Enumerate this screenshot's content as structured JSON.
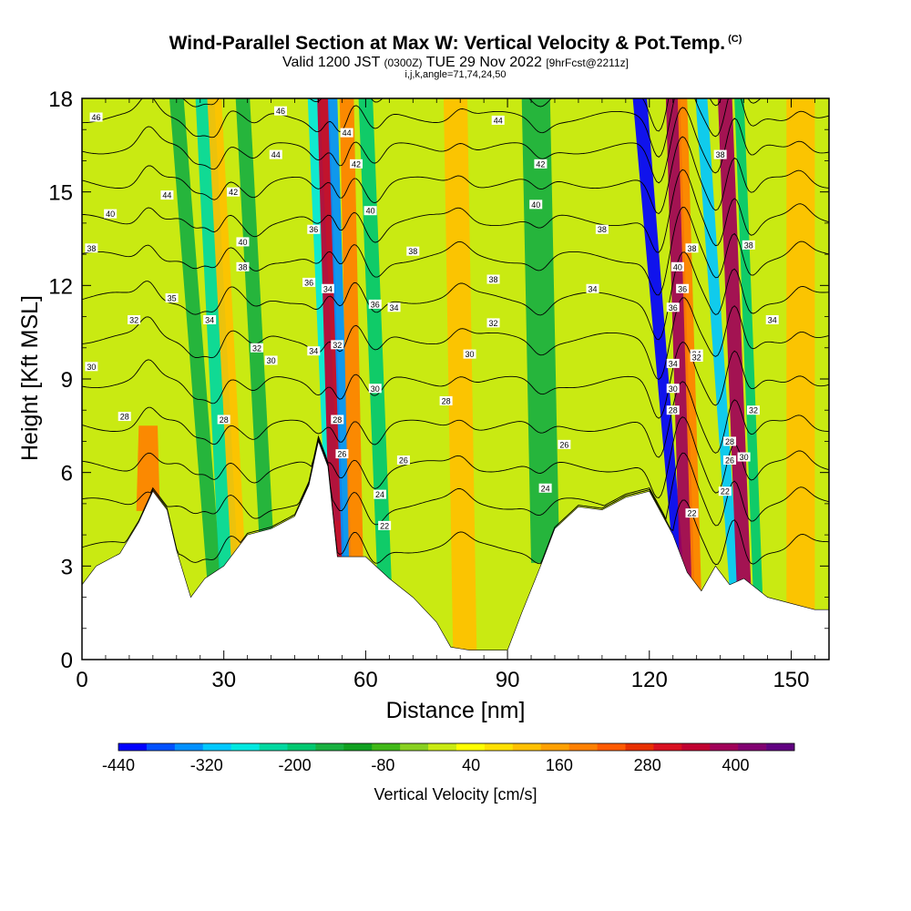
{
  "title": "Wind-Parallel Section at Max W: Vertical Velocity & Pot.Temp.",
  "title_mark": "(C)",
  "subtitle_pre": "Valid 1200 JST ",
  "subtitle_utc": "(0300Z)",
  "subtitle_mid": " TUE 29 Nov 2022 ",
  "subtitle_fcst": "[9hrFcst@2211z]",
  "index_line": "i,j,k,angle=71,74,24,50",
  "colorbar_label": "Vertical Velocity [cm/s]",
  "chart_data": {
    "type": "heatmap",
    "xlabel": "Distance [nm]",
    "ylabel": "Height [Kft MSL]",
    "xlim": [
      0,
      158
    ],
    "ylim": [
      0,
      18
    ],
    "x_ticks": [
      0,
      30,
      60,
      90,
      120,
      150
    ],
    "x_tick_labels": [
      "0",
      "30",
      "60",
      "90",
      "120",
      "150"
    ],
    "y_ticks": [
      0,
      3,
      6,
      9,
      12,
      15,
      18
    ],
    "y_tick_labels": [
      "0",
      "3",
      "6",
      "9",
      "12",
      "15",
      "18"
    ],
    "background_color": "#c9ea12",
    "terrain": {
      "x": [
        0,
        3,
        8,
        12,
        15,
        18,
        20,
        23,
        26,
        30,
        35,
        40,
        45,
        48,
        50,
        52,
        54,
        57,
        60,
        65,
        70,
        75,
        78,
        82,
        86,
        90,
        93,
        97,
        100,
        105,
        110,
        115,
        120,
        125,
        128,
        131,
        134,
        137,
        140,
        145,
        150,
        155,
        158
      ],
      "height_kft": [
        2.4,
        3.0,
        3.4,
        4.4,
        5.4,
        4.8,
        3.5,
        2.0,
        2.6,
        3.0,
        4.0,
        4.2,
        4.6,
        5.6,
        7.0,
        6.2,
        3.3,
        3.3,
        3.3,
        2.6,
        2.0,
        1.2,
        0.4,
        0.3,
        0.3,
        0.3,
        1.5,
        3.0,
        4.2,
        4.9,
        4.8,
        5.2,
        5.4,
        4.0,
        2.8,
        2.2,
        3.0,
        2.4,
        2.6,
        2.0,
        1.8,
        1.6,
        1.6
      ]
    },
    "shading_features": [
      {
        "x_base": 14,
        "x_top": 14,
        "w_base": 5,
        "w_top": 4,
        "value": 200,
        "y_top": 7.5
      },
      {
        "x_base": 28,
        "x_top": 20,
        "w_base": 3,
        "w_top": 3,
        "value": -150
      },
      {
        "x_base": 31,
        "x_top": 26,
        "w_base": 4,
        "w_top": 4,
        "value": -230
      },
      {
        "x_base": 33,
        "x_top": 28,
        "w_base": 3,
        "w_top": 3,
        "value": 140
      },
      {
        "x_base": 39,
        "x_top": 34,
        "w_base": 3,
        "w_top": 3,
        "value": -130
      },
      {
        "x_base": 53,
        "x_top": 49,
        "w_base": 3,
        "w_top": 2.5,
        "value": -260
      },
      {
        "x_base": 54,
        "x_top": 51,
        "w_base": 3,
        "w_top": 2.5,
        "value": 360
      },
      {
        "x_base": 56,
        "x_top": 53,
        "w_base": 2,
        "w_top": 2,
        "value": -360
      },
      {
        "x_base": 58,
        "x_top": 56,
        "w_base": 3,
        "w_top": 3,
        "value": 200
      },
      {
        "x_base": 64,
        "x_top": 60,
        "w_base": 3,
        "w_top": 3,
        "value": -200
      },
      {
        "x_base": 81,
        "x_top": 79,
        "w_base": 5,
        "w_top": 5,
        "value": 120
      },
      {
        "x_base": 98,
        "x_top": 96,
        "w_base": 6,
        "w_top": 6,
        "value": -140
      },
      {
        "x_base": 126,
        "x_top": 118,
        "w_base": 2,
        "w_top": 3,
        "value": -440
      },
      {
        "x_base": 128,
        "x_top": 125,
        "w_base": 3,
        "w_top": 3,
        "value": 400
      },
      {
        "x_base": 130,
        "x_top": 127,
        "w_base": 2,
        "w_top": 2,
        "value": 220
      },
      {
        "x_base": 138,
        "x_top": 131,
        "w_base": 2,
        "w_top": 2.5,
        "value": -300
      },
      {
        "x_base": 140,
        "x_top": 136,
        "w_base": 3,
        "w_top": 3,
        "value": 400
      },
      {
        "x_base": 143,
        "x_top": 139,
        "w_base": 2,
        "w_top": 2,
        "value": -200
      },
      {
        "x_base": 152,
        "x_top": 152,
        "w_base": 6,
        "w_top": 6,
        "value": 130
      }
    ],
    "isentropes": {
      "levels": [
        22,
        24,
        26,
        28,
        30,
        32,
        34,
        36,
        38,
        40,
        42,
        44,
        46
      ],
      "base_height_kft": [
        3.6,
        5.0,
        6.2,
        7.5,
        8.9,
        10.3,
        11.6,
        12.9,
        14.1,
        15.3,
        16.4,
        17.4,
        18.3
      ]
    },
    "isentrope_labels": [
      {
        "text": "46",
        "x": 3,
        "y": 17.4
      },
      {
        "text": "46",
        "x": 42,
        "y": 17.6
      },
      {
        "text": "44",
        "x": 18,
        "y": 14.9
      },
      {
        "text": "44",
        "x": 41,
        "y": 16.2
      },
      {
        "text": "44",
        "x": 56,
        "y": 16.9
      },
      {
        "text": "44",
        "x": 88,
        "y": 17.3
      },
      {
        "text": "42",
        "x": 32,
        "y": 15.0
      },
      {
        "text": "42",
        "x": 58,
        "y": 15.9
      },
      {
        "text": "42",
        "x": 97,
        "y": 15.9
      },
      {
        "text": "40",
        "x": 6,
        "y": 14.3
      },
      {
        "text": "40",
        "x": 34,
        "y": 13.4
      },
      {
        "text": "40",
        "x": 61,
        "y": 14.4
      },
      {
        "text": "40",
        "x": 96,
        "y": 14.6
      },
      {
        "text": "40",
        "x": 126,
        "y": 12.6
      },
      {
        "text": "38",
        "x": 2,
        "y": 13.2
      },
      {
        "text": "38",
        "x": 34,
        "y": 12.6
      },
      {
        "text": "38",
        "x": 70,
        "y": 13.1
      },
      {
        "text": "38",
        "x": 87,
        "y": 12.2
      },
      {
        "text": "38",
        "x": 110,
        "y": 13.8
      },
      {
        "text": "38",
        "x": 129,
        "y": 13.2
      },
      {
        "text": "38",
        "x": 135,
        "y": 16.2
      },
      {
        "text": "38",
        "x": 141,
        "y": 13.3
      },
      {
        "text": "36",
        "x": 49,
        "y": 13.8
      },
      {
        "text": "36",
        "x": 48,
        "y": 12.1
      },
      {
        "text": "36",
        "x": 62,
        "y": 11.4
      },
      {
        "text": "36",
        "x": 127,
        "y": 11.9
      },
      {
        "text": "36",
        "x": 125,
        "y": 11.3
      },
      {
        "text": "35",
        "x": 19,
        "y": 11.6
      },
      {
        "text": "34",
        "x": 27,
        "y": 10.9
      },
      {
        "text": "34",
        "x": 52,
        "y": 11.9
      },
      {
        "text": "34",
        "x": 66,
        "y": 11.3
      },
      {
        "text": "34",
        "x": 108,
        "y": 11.9
      },
      {
        "text": "34",
        "x": 125,
        "y": 9.5
      },
      {
        "text": "34",
        "x": 49,
        "y": 9.9
      },
      {
        "text": "34",
        "x": 130,
        "y": 9.8
      },
      {
        "text": "34",
        "x": 146,
        "y": 10.9
      },
      {
        "text": "32",
        "x": 11,
        "y": 10.9
      },
      {
        "text": "32",
        "x": 37,
        "y": 10.0
      },
      {
        "text": "32",
        "x": 54,
        "y": 10.1
      },
      {
        "text": "32",
        "x": 87,
        "y": 10.8
      },
      {
        "text": "32",
        "x": 130,
        "y": 9.7
      },
      {
        "text": "32",
        "x": 142,
        "y": 8.0
      },
      {
        "text": "30",
        "x": 2,
        "y": 9.4
      },
      {
        "text": "30",
        "x": 40,
        "y": 9.6
      },
      {
        "text": "30",
        "x": 62,
        "y": 8.7
      },
      {
        "text": "30",
        "x": 82,
        "y": 9.8
      },
      {
        "text": "30",
        "x": 125,
        "y": 8.7
      },
      {
        "text": "30",
        "x": 140,
        "y": 6.5
      },
      {
        "text": "28",
        "x": 9,
        "y": 7.8
      },
      {
        "text": "28",
        "x": 30,
        "y": 7.7
      },
      {
        "text": "28",
        "x": 54,
        "y": 7.7
      },
      {
        "text": "28",
        "x": 77,
        "y": 8.3
      },
      {
        "text": "28",
        "x": 125,
        "y": 8.0
      },
      {
        "text": "28",
        "x": 137,
        "y": 7.0
      },
      {
        "text": "26",
        "x": 55,
        "y": 6.6
      },
      {
        "text": "26",
        "x": 68,
        "y": 6.4
      },
      {
        "text": "26",
        "x": 102,
        "y": 6.9
      },
      {
        "text": "26",
        "x": 137,
        "y": 6.4
      },
      {
        "text": "24",
        "x": 63,
        "y": 5.3
      },
      {
        "text": "24",
        "x": 98,
        "y": 5.5
      },
      {
        "text": "22",
        "x": 64,
        "y": 4.3
      },
      {
        "text": "22",
        "x": 129,
        "y": 4.7
      },
      {
        "text": "22",
        "x": 136,
        "y": 5.4
      }
    ],
    "colorbar": {
      "min": -440,
      "max": 480,
      "step": 40,
      "tick_values": [
        -440,
        -320,
        -200,
        -80,
        40,
        160,
        280,
        400
      ],
      "tick_labels": [
        "-440",
        "-320",
        "-200",
        "-80",
        "40",
        "160",
        "280",
        "400"
      ],
      "colors": [
        "#0000ff",
        "#0050ff",
        "#0090ff",
        "#00c8ff",
        "#00e8e0",
        "#00d8a0",
        "#00c870",
        "#18b040",
        "#10a020",
        "#40b818",
        "#88d020",
        "#c9ea12",
        "#ffff00",
        "#ffe000",
        "#ffc000",
        "#ffa000",
        "#ff8000",
        "#ff5a00",
        "#e83000",
        "#d81020",
        "#c00030",
        "#a00058",
        "#800070",
        "#600080"
      ]
    }
  }
}
